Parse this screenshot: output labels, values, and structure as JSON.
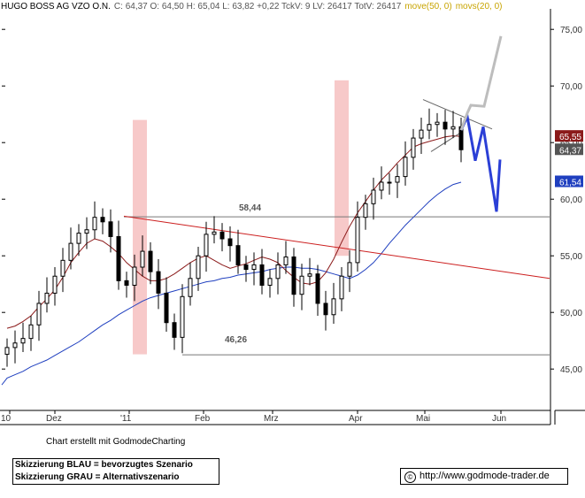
{
  "header": {
    "symbol": "HUGO BOSS AG VZO O.N.",
    "stats": "C: 64,37  O: 64,50  H: 65,04  L: 63,82  +0,22  TckV: 9  LV: 26417  TotV: 26417",
    "ma50": "move(50, 0)",
    "ma20": "movs(20, 0)"
  },
  "colors": {
    "candle": "#000000",
    "ma50": "#1f3fbf",
    "ma20": "#8b1a1a",
    "trendline": "#cc1f1f",
    "highlight": "#f7c9c9",
    "scenario_blue": "#2b3fd6",
    "scenario_grey": "#bdbdbd",
    "support": "#777777",
    "ma50_label": "#c8a400",
    "ma20_label": "#c8a400"
  },
  "chart_data": {
    "type": "candlestick",
    "y_ticks": [
      "75,00",
      "70,00",
      "65,00",
      "60,00",
      "55,00",
      "50,00",
      "45,00"
    ],
    "ylim": [
      41.5,
      76.5
    ],
    "x_labels": [
      "10",
      "Dez",
      "'11",
      "Feb",
      "Mrz",
      "Apr",
      "Mai",
      "Jun"
    ],
    "price_tags": [
      {
        "label": "65,55",
        "value": 65.55,
        "color": "#8b1a1a"
      },
      {
        "label": "64,37",
        "value": 64.37,
        "color": "#555555"
      },
      {
        "label": "61,54",
        "value": 61.54,
        "color": "#1f3fbf"
      }
    ],
    "levels": [
      {
        "label": "58,44",
        "value": 58.44
      },
      {
        "label": "46,26",
        "value": 46.26
      }
    ],
    "series": [
      {
        "name": "move(50, 0)",
        "values": [
          44.2,
          44.5,
          44.8,
          45.2,
          45.5,
          45.8,
          46.2,
          46.6,
          47.0,
          47.4,
          47.9,
          48.4,
          48.9,
          49.3,
          49.8,
          50.2,
          50.6,
          51.0,
          51.3,
          51.5,
          51.7,
          51.9,
          52.1,
          52.3,
          52.5,
          52.7,
          52.8,
          53.0,
          53.1,
          53.3,
          53.4,
          53.5,
          53.6,
          53.8,
          53.9,
          54.0,
          54.0,
          53.9,
          53.9,
          53.8,
          53.6,
          53.4,
          53.2,
          53.0,
          53.3,
          53.8,
          54.4,
          55.2,
          56.1,
          56.9,
          57.7,
          58.4,
          59.1,
          59.8,
          60.4,
          60.9,
          61.3,
          61.5
        ]
      },
      {
        "name": "movs(20, 0)",
        "values": [
          48.6,
          48.8,
          49.2,
          49.7,
          50.5,
          51.2,
          52.0,
          53.1,
          54.4,
          55.3,
          56.1,
          56.5,
          56.3,
          55.8,
          55.2,
          54.4,
          53.8,
          53.2,
          52.8,
          52.8,
          53.0,
          53.4,
          53.9,
          54.4,
          54.8,
          55.0,
          54.6,
          54.2,
          53.9,
          54.1,
          54.3,
          54.6,
          54.9,
          54.7,
          54.4,
          53.7,
          53.1,
          52.6,
          52.5,
          52.7,
          53.5,
          54.7,
          56.2,
          57.6,
          58.8,
          59.8,
          60.8,
          61.7,
          62.4,
          63.2,
          63.9,
          64.6,
          64.9,
          65.1,
          65.3,
          65.5,
          65.6,
          65.55
        ]
      },
      {
        "name": "close",
        "values": [
          46.9,
          47.3,
          47.7,
          48.9,
          50.8,
          51.7,
          53.2,
          54.6,
          56.1,
          57.0,
          57.3,
          58.4,
          58.0,
          56.7,
          52.8,
          52.4,
          54.0,
          55.4,
          53.6,
          51.7,
          49.1,
          47.8,
          51.4,
          53.0,
          55.0,
          56.9,
          57.1,
          56.5,
          55.9,
          54.2,
          53.8,
          54.2,
          52.4,
          53.0,
          54.2,
          54.9,
          51.6,
          53.2,
          53.4,
          50.8,
          49.8,
          51.2,
          53.2,
          54.4,
          58.4,
          59.6,
          60.8,
          61.5,
          61.5,
          62.0,
          63.7,
          65.4,
          66.1,
          66.6,
          66.8,
          66.2,
          66.4,
          64.37
        ]
      }
    ],
    "scenarios": [
      {
        "name": "BLAU",
        "color": "#2b3fd6",
        "values": [
          66.1,
          67.3,
          63.4,
          66.4,
          58.9,
          63.5
        ]
      },
      {
        "name": "GRAU",
        "color": "#bdbdbd",
        "values": [
          66.1,
          67.6,
          68.3,
          68.2,
          74.4
        ]
      }
    ],
    "trendline": {
      "from": 58.5,
      "to": 53.0
    },
    "wedge_top": {
      "from": 68.8,
      "to": 66.2
    },
    "wedge_bottom": {
      "from": 64.2,
      "to": 65.9
    },
    "xlabel": "",
    "ylabel": ""
  },
  "footer": {
    "credit": "Chart erstellt mit GodmodeCharting",
    "legend_blue": "Skizzierung BLAU = bevorzugtes Szenario",
    "legend_grey": "Skizzierung GRAU = Alternativszenario",
    "url": "http://www.godmode-trader.de",
    "copyright_symbol": "©"
  }
}
